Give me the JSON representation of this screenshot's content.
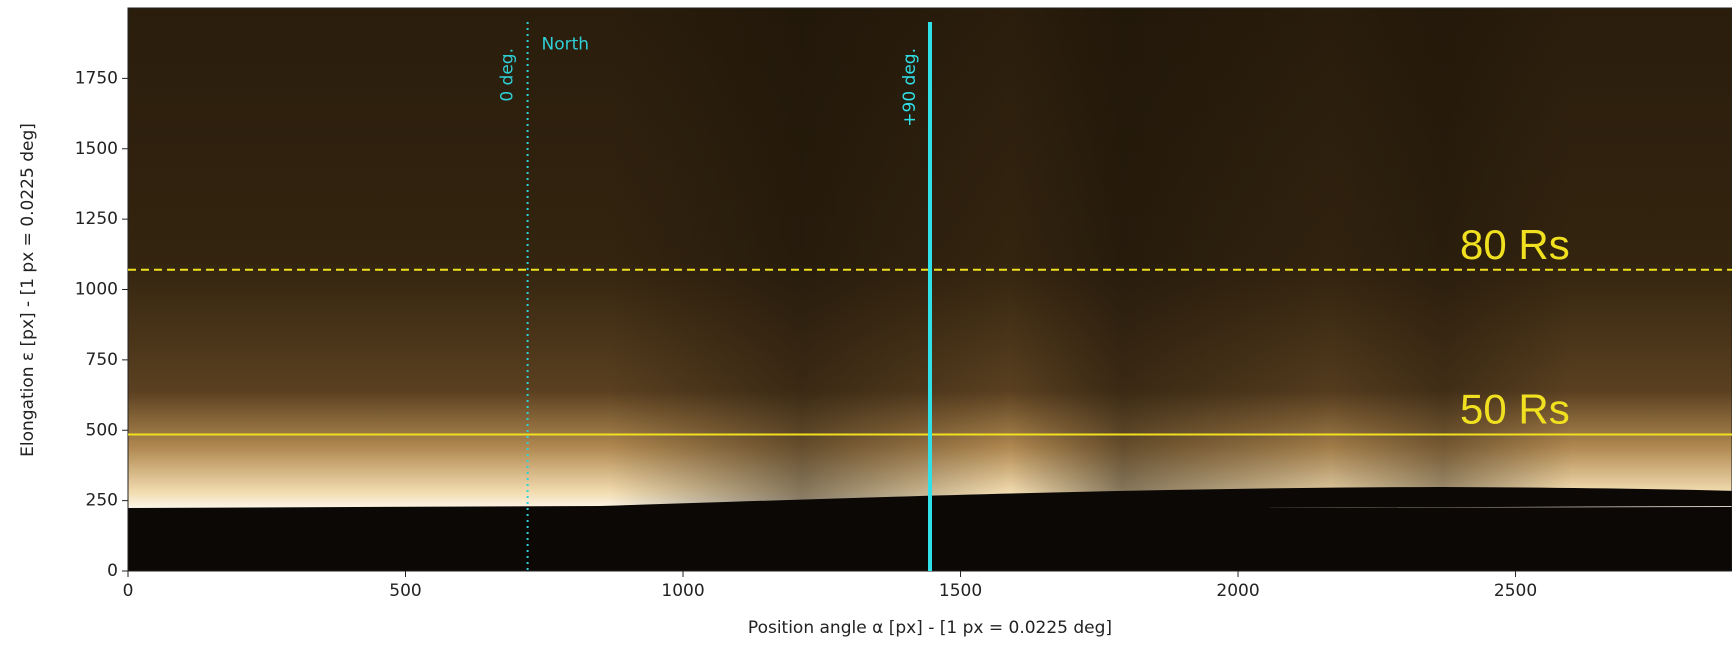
{
  "chart_data": {
    "type": "image",
    "xlabel": "Position angle α [px]  -  [1 px = 0.0225 deg]",
    "ylabel": "Elongation ε [px]   -  [1 px = 0.0225 deg]",
    "xlim": [
      0,
      2890
    ],
    "ylim": [
      0,
      2000
    ],
    "xticks": [
      0,
      500,
      1000,
      1500,
      2000,
      2500
    ],
    "yticks": [
      0,
      250,
      500,
      750,
      1000,
      1250,
      1500,
      1750
    ],
    "vlines": [
      {
        "x": 720,
        "color": "#30d0d8",
        "style": "dotted",
        "label": "0 deg."
      },
      {
        "x": 1445,
        "color": "#30e0e8",
        "style": "solid",
        "label": "+90 deg."
      }
    ],
    "hlines": [
      {
        "y": 1070,
        "color": "#f0e020",
        "style": "dashed",
        "label": "80 Rs"
      },
      {
        "y": 485,
        "color": "#f0e020",
        "style": "solid",
        "label": "50 Rs"
      }
    ],
    "annotations": [
      {
        "text": "North",
        "x": 745,
        "y": 1870,
        "color": "#30d0d8"
      }
    ]
  }
}
